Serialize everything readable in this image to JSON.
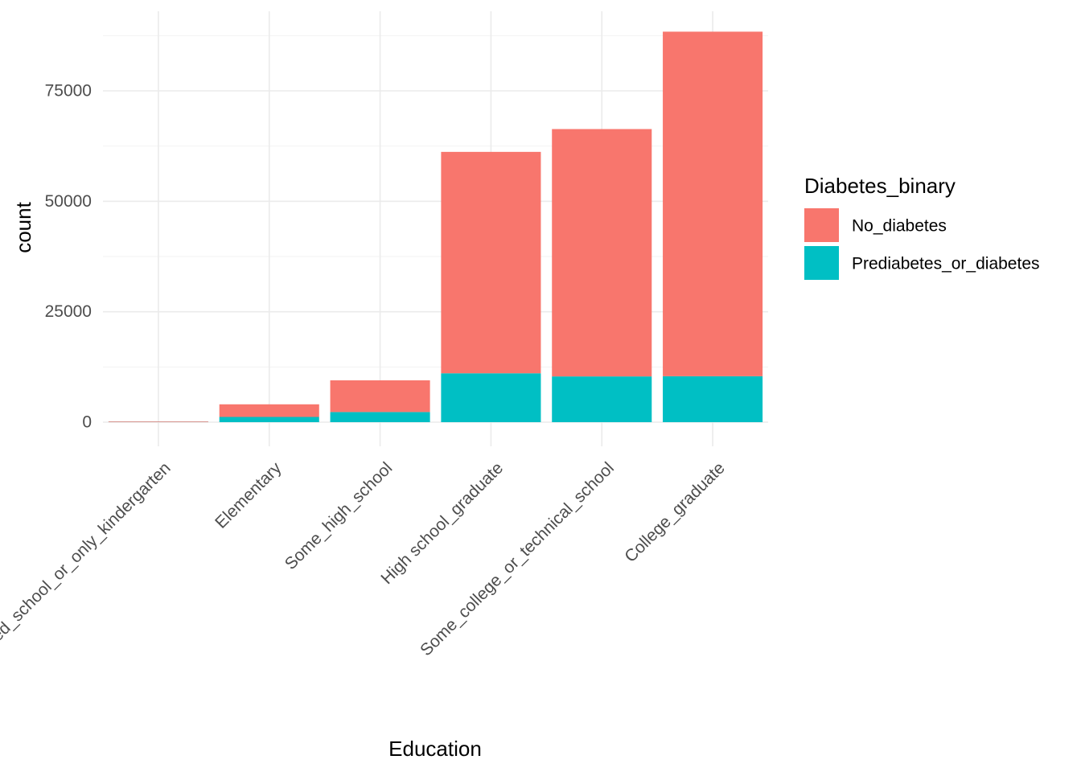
{
  "chart_data": {
    "type": "bar",
    "stacked": true,
    "xlabel": "Education",
    "ylabel": "count",
    "categories": [
      "Never_attended_school_or_only_kindergarten",
      "Elementary",
      "Some_high_school",
      "High school_graduate",
      "Some_college_or_technical_school",
      "College_graduate"
    ],
    "series": [
      {
        "name": "Prediabetes_or_diabetes",
        "color": "#00BFC4",
        "values": [
          47,
          1183,
          2296,
          11066,
          10354,
          10400
        ]
      },
      {
        "name": "No_diabetes",
        "color": "#F8766D",
        "values": [
          127,
          2860,
          7182,
          50124,
          56000,
          78000
        ]
      }
    ],
    "ylim": [
      0,
      90000
    ],
    "yticks": [
      0,
      25000,
      50000,
      75000
    ],
    "ytick_labels": [
      "0",
      "25000",
      "50000",
      "75000"
    ],
    "grid": true,
    "legend": {
      "title": "Diabetes_binary",
      "position": "right",
      "order": [
        "No_diabetes",
        "Prediabetes_or_diabetes"
      ]
    }
  }
}
